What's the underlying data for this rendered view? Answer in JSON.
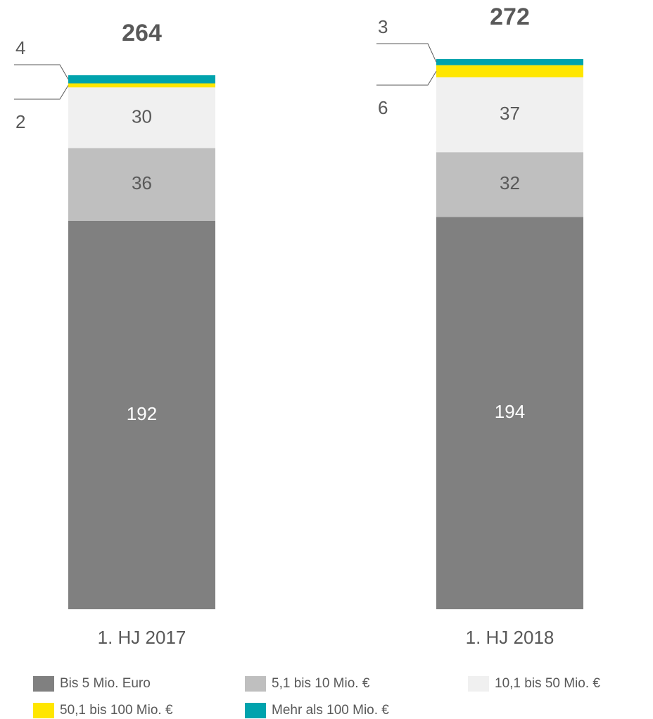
{
  "chart_data": {
    "type": "stacked_bar",
    "categories": [
      "1. HJ 2017",
      "1. HJ 2018"
    ],
    "totals": [
      264,
      272
    ],
    "series": [
      {
        "name": "Bis 5 Mio. Euro",
        "color": "#808080",
        "values": [
          192,
          194
        ]
      },
      {
        "name": "5,1 bis 10 Mio. €",
        "color": "#bfbfbf",
        "values": [
          36,
          32
        ]
      },
      {
        "name": "10,1 bis 50  Mio. €",
        "color": "#f0f0f0",
        "values": [
          30,
          37
        ]
      },
      {
        "name": "50,1 bis 100  Mio. €",
        "color": "#ffe600",
        "values": [
          2,
          6
        ]
      },
      {
        "name": "Mehr als 100 Mio. €",
        "color": "#00a3ad",
        "values": [
          4,
          3
        ]
      }
    ]
  }
}
